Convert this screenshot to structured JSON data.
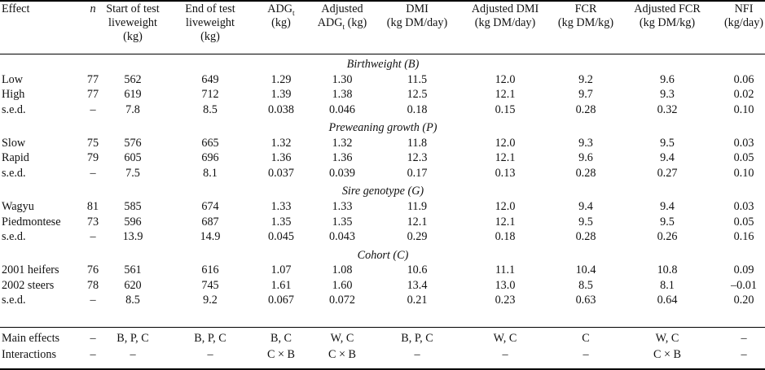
{
  "headers": [
    "Effect",
    "n",
    "Start of test liveweight (kg)",
    "End of test liveweight (kg)",
    "ADGt (kg)",
    "Adjusted ADGt (kg)",
    "DMI (kg DM/day)",
    "Adjusted DMI (kg DM/day)",
    "FCR (kg DM/kg)",
    "Adjusted FCR (kg DM/kg)",
    "NFI (kg/day)"
  ],
  "header_lines": [
    [
      "Effect"
    ],
    [
      "n"
    ],
    [
      "Start of test",
      "liveweight",
      "(kg)"
    ],
    [
      "End of test",
      "liveweight",
      "(kg)"
    ],
    [
      "ADG",
      "(kg)"
    ],
    [
      "Adjusted",
      "ADG",
      " (kg)"
    ],
    [
      "DMI",
      "(kg DM/day)"
    ],
    [
      "Adjusted DMI",
      "(kg DM/day)"
    ],
    [
      "FCR",
      "(kg DM/kg)"
    ],
    [
      "Adjusted FCR",
      "(kg DM/kg)"
    ],
    [
      "NFI",
      "(kg/day)"
    ]
  ],
  "subscript": "t",
  "sections": [
    {
      "title": "Birthweight (B)",
      "rows": [
        [
          "Low",
          "77",
          "562",
          "649",
          "1.29",
          "1.30",
          "11.5",
          "12.0",
          "9.2",
          "9.6",
          "0.06"
        ],
        [
          "High",
          "77",
          "619",
          "712",
          "1.39",
          "1.38",
          "12.5",
          "12.1",
          "9.7",
          "9.3",
          "0.02"
        ],
        [
          "s.e.d.",
          "–",
          "7.8",
          "8.5",
          "0.038",
          "0.046",
          "0.18",
          "0.15",
          "0.28",
          "0.32",
          "0.10"
        ]
      ]
    },
    {
      "title": "Preweaning growth (P)",
      "rows": [
        [
          "Slow",
          "75",
          "576",
          "665",
          "1.32",
          "1.32",
          "11.8",
          "12.0",
          "9.3",
          "9.5",
          "0.03"
        ],
        [
          "Rapid",
          "79",
          "605",
          "696",
          "1.36",
          "1.36",
          "12.3",
          "12.1",
          "9.6",
          "9.4",
          "0.05"
        ],
        [
          "s.e.d.",
          "–",
          "7.5",
          "8.1",
          "0.037",
          "0.039",
          "0.17",
          "0.13",
          "0.28",
          "0.27",
          "0.10"
        ]
      ]
    },
    {
      "title": "Sire genotype (G)",
      "rows": [
        [
          "Wagyu",
          "81",
          "585",
          "674",
          "1.33",
          "1.33",
          "11.9",
          "12.0",
          "9.4",
          "9.4",
          "0.03"
        ],
        [
          "Piedmontese",
          "73",
          "596",
          "687",
          "1.35",
          "1.35",
          "12.1",
          "12.1",
          "9.5",
          "9.5",
          "0.05"
        ],
        [
          "s.e.d.",
          "–",
          "13.9",
          "14.9",
          "0.045",
          "0.043",
          "0.29",
          "0.18",
          "0.28",
          "0.26",
          "0.16"
        ]
      ]
    },
    {
      "title": "Cohort (C)",
      "rows": [
        [
          "2001 heifers",
          "76",
          "561",
          "616",
          "1.07",
          "1.08",
          "10.6",
          "11.1",
          "10.4",
          "10.8",
          "0.09"
        ],
        [
          "2002 steers",
          "78",
          "620",
          "745",
          "1.61",
          "1.60",
          "13.4",
          "13.0",
          "8.5",
          "8.1",
          "–0.01"
        ],
        [
          "s.e.d.",
          "–",
          "8.5",
          "9.2",
          "0.067",
          "0.072",
          "0.21",
          "0.23",
          "0.63",
          "0.64",
          "0.20"
        ]
      ]
    }
  ],
  "footer_rows": [
    [
      "Main effects",
      "–",
      "B, P, C",
      "B, P, C",
      "B, C",
      "W, C",
      "B, P, C",
      "W, C",
      "C",
      "W, C",
      "–"
    ],
    [
      "Interactions",
      "–",
      "–",
      "–",
      "C × B",
      "C × B",
      "–",
      "–",
      "–",
      "C × B",
      "–"
    ]
  ]
}
